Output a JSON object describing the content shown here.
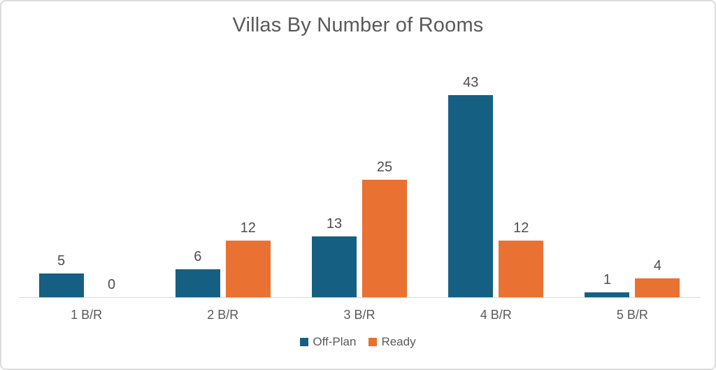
{
  "chart_data": {
    "type": "bar",
    "title": "Villas By Number of Rooms",
    "categories": [
      "1 B/R",
      "2 B/R",
      "3 B/R",
      "4 B/R",
      "5 B/R"
    ],
    "series": [
      {
        "name": "Off-Plan",
        "color": "#156082",
        "values": [
          5,
          6,
          13,
          43,
          1
        ]
      },
      {
        "name": "Ready",
        "color": "#E97132",
        "values": [
          0,
          12,
          25,
          12,
          4
        ]
      }
    ],
    "xlabel": "",
    "ylabel": "",
    "ylim": [
      0,
      45
    ],
    "grid": false,
    "y_axis_labels_visible": false,
    "data_labels": true,
    "legend_position": "bottom"
  },
  "colors": {
    "title_text": "#595959",
    "data_label_text": "#4d4d4d",
    "category_text": "#595959",
    "legend_text": "#595959",
    "axis_line": "#d9d9d9",
    "frame_border": "#dcdcdc",
    "background": "#ffffff"
  }
}
